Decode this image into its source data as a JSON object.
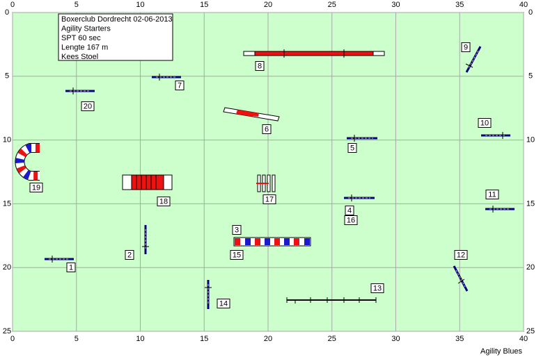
{
  "axes": {
    "xlim": [
      0,
      40
    ],
    "ylim": [
      0,
      25
    ],
    "xticks": [
      0,
      5,
      10,
      15,
      20,
      25,
      30,
      35,
      40
    ],
    "yticks": [
      0,
      5,
      10,
      15,
      20,
      25
    ]
  },
  "info": [
    "Boxerclub Dordrecht 02-06-2013",
    "Agility Starters",
    "SPT 60 sec",
    "Lengte 167 m",
    "Kees Stoel"
  ],
  "labels": [
    "1",
    "2",
    "3",
    "4",
    "5",
    "6",
    "7",
    "8",
    "9",
    "10",
    "11",
    "12",
    "13",
    "14",
    "15",
    "16",
    "17",
    "18",
    "19",
    "20"
  ],
  "footer": "Agility Blues"
}
